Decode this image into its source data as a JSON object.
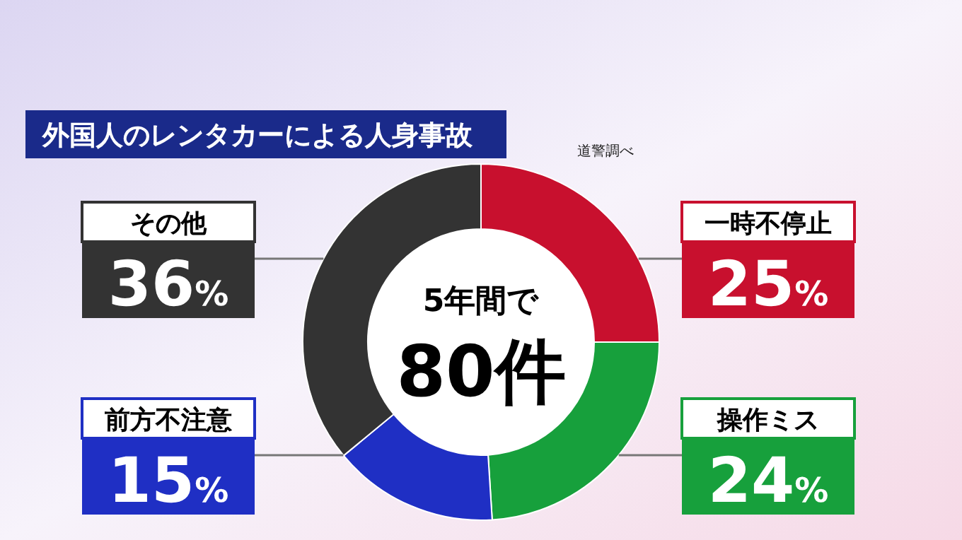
{
  "chart_data": {
    "type": "donut",
    "title": "外国人のレンタカーによる人身事故",
    "categories": [
      "一時不停止",
      "操作ミス",
      "前方不注意",
      "その他"
    ],
    "values": [
      25,
      24,
      15,
      36
    ],
    "colors": [
      "#c8102e",
      "#17a03c",
      "#1f2fc4",
      "#333333"
    ],
    "value_labels": [
      "25%",
      "24%",
      "15%",
      "36%"
    ],
    "annotations": [
      "道警調べ",
      "5年間で",
      "80件"
    ]
  }
}
